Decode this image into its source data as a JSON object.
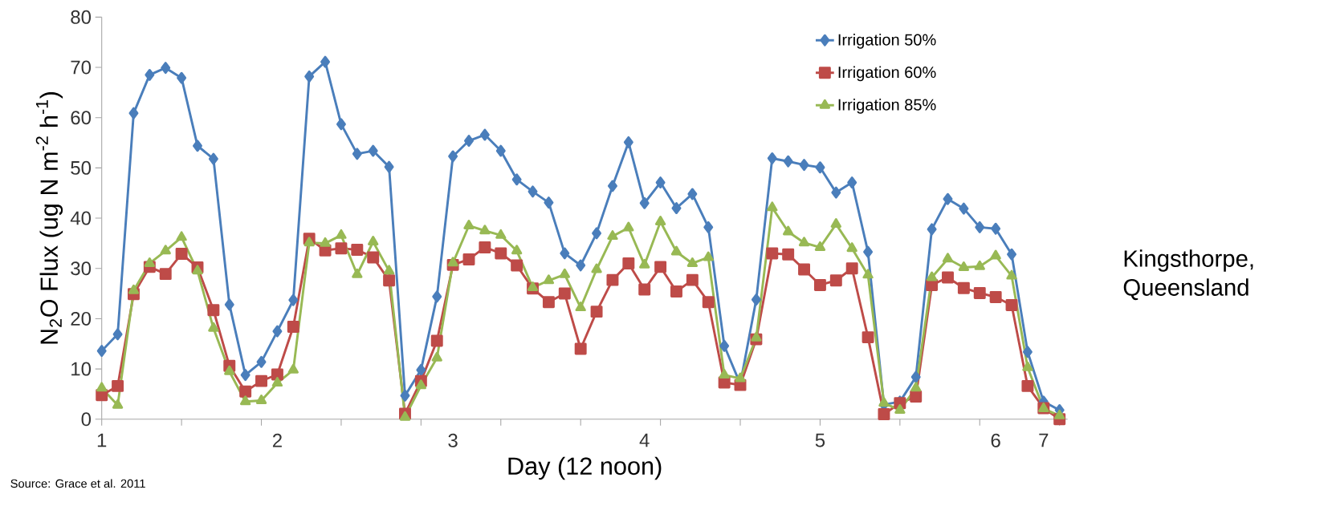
{
  "chart_data": {
    "type": "line",
    "xlabel": "Day (12 noon)",
    "ylabel": "N$_{2}$O Flux (ug N m$^{-2}$ h$^{-1}$)",
    "categories": [
      "1",
      null,
      null,
      null,
      null,
      null,
      null,
      null,
      null,
      null,
      null,
      "2",
      null,
      null,
      null,
      null,
      null,
      null,
      null,
      null,
      null,
      null,
      "3",
      null,
      null,
      null,
      null,
      null,
      null,
      null,
      null,
      null,
      null,
      null,
      "4",
      null,
      null,
      null,
      null,
      null,
      null,
      null,
      null,
      null,
      null,
      "5",
      null,
      null,
      null,
      null,
      null,
      null,
      null,
      null,
      null,
      null,
      "6",
      null,
      null,
      "7",
      null
    ],
    "ylim": [
      0,
      80
    ],
    "yticks": [
      0,
      10,
      20,
      30,
      40,
      50,
      60,
      70,
      80
    ],
    "legend": "top right",
    "line_style": "solid",
    "annotations": [
      "Kingsthorpe, Queensland",
      "Source: Grace  et al. 2011"
    ],
    "series": [
      {
        "name": "Irrigation 50%",
        "color": "#4a7ebb",
        "marker": "diamond",
        "values": [
          13.6,
          16.9,
          60.9,
          68.5,
          69.9,
          67.9,
          54.4,
          51.8,
          22.8,
          8.8,
          11.4,
          17.5,
          23.7,
          68.2,
          71.1,
          58.7,
          52.8,
          53.4,
          50.2,
          4.7,
          9.8,
          24.4,
          52.3,
          55.4,
          56.6,
          53.4,
          47.7,
          45.3,
          43.1,
          33.0,
          30.6,
          37.0,
          46.4,
          55.1,
          43.0,
          47.1,
          42.0,
          44.8,
          38.2,
          14.6,
          7.0,
          23.8,
          51.9,
          51.3,
          50.6,
          50.1,
          45.1,
          47.1,
          33.3,
          2.9,
          3.5,
          8.4,
          37.8,
          43.8,
          41.9,
          38.2,
          37.9,
          32.8,
          13.4,
          3.5,
          1.8
        ]
      },
      {
        "name": "Irrigation 60%",
        "color": "#be4b48",
        "marker": "square",
        "values": [
          4.8,
          6.6,
          24.9,
          30.3,
          28.9,
          32.9,
          30.2,
          21.7,
          10.6,
          5.5,
          7.6,
          8.9,
          18.4,
          35.9,
          33.6,
          34.0,
          33.7,
          32.2,
          27.6,
          1.1,
          7.6,
          15.6,
          30.7,
          31.8,
          34.2,
          33.0,
          30.6,
          26.0,
          23.3,
          25.0,
          14.0,
          21.4,
          27.7,
          31.0,
          25.8,
          30.3,
          25.4,
          27.7,
          23.3,
          7.3,
          6.8,
          15.9,
          33.0,
          32.8,
          29.8,
          26.7,
          27.6,
          30.0,
          16.3,
          1.0,
          3.2,
          4.5,
          26.7,
          28.2,
          26.1,
          25.1,
          24.3,
          22.7,
          6.6,
          2.2,
          0
        ]
      },
      {
        "name": "Irrigation 85%",
        "color": "#98b954",
        "marker": "triangle",
        "values": [
          6.2,
          2.8,
          25.6,
          31.0,
          33.5,
          36.2,
          29.5,
          18.1,
          9.5,
          3.5,
          3.7,
          7.2,
          9.8,
          35.1,
          35.0,
          36.6,
          28.8,
          35.3,
          29.5,
          0.4,
          6.7,
          12.2,
          31.1,
          38.5,
          37.5,
          36.6,
          33.5,
          26.2,
          27.6,
          28.8,
          22.2,
          29.8,
          36.4,
          38.1,
          30.7,
          39.3,
          33.3,
          31.0,
          32.2,
          8.8,
          8.1,
          16.2,
          42.1,
          37.3,
          35.1,
          34.2,
          38.8,
          34.0,
          28.7,
          3.2,
          1.8,
          6.2,
          28.2,
          31.9,
          30.2,
          30.4,
          32.5,
          28.5,
          10.3,
          2.1,
          0.7
        ]
      }
    ]
  }
}
